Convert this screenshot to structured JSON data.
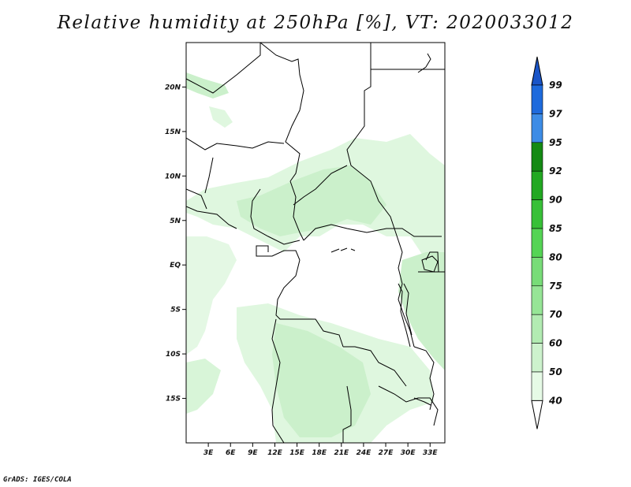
{
  "title": "Relative humidity at 250hPa [%], VT: 2020033012",
  "credit": "GrADS: IGES/COLA",
  "map": {
    "lat_labels": [
      {
        "label": "20N",
        "lat": 20
      },
      {
        "label": "15N",
        "lat": 15
      },
      {
        "label": "10N",
        "lat": 10
      },
      {
        "label": "5N",
        "lat": 5
      },
      {
        "label": "EQ",
        "lat": 0
      },
      {
        "label": "5S",
        "lat": -5
      },
      {
        "label": "10S",
        "lat": -10
      },
      {
        "label": "15S",
        "lat": -15
      }
    ],
    "lon_labels": [
      {
        "label": "3E",
        "lon": 3
      },
      {
        "label": "6E",
        "lon": 6
      },
      {
        "label": "9E",
        "lon": 9
      },
      {
        "label": "12E",
        "lon": 12
      },
      {
        "label": "15E",
        "lon": 15
      },
      {
        "label": "18E",
        "lon": 18
      },
      {
        "label": "21E",
        "lon": 21
      },
      {
        "label": "24E",
        "lon": 24
      },
      {
        "label": "27E",
        "lon": 27
      },
      {
        "label": "30E",
        "lon": 30
      },
      {
        "label": "33E",
        "lon": 33
      }
    ],
    "extent": {
      "lon_min": 0,
      "lon_max": 35,
      "lat_min": -20,
      "lat_max": 25
    }
  },
  "colorbar": {
    "levels": [
      "40",
      "50",
      "60",
      "70",
      "75",
      "80",
      "85",
      "90",
      "92",
      "95",
      "97",
      "99"
    ],
    "colors": [
      "#ffffff",
      "#e6fae6",
      "#cdf2cd",
      "#b2ebb2",
      "#96e596",
      "#78dc78",
      "#55d455",
      "#38c038",
      "#22a822",
      "#148a14",
      "#3d8ce6",
      "#1e6adc",
      "#1a55c8"
    ]
  }
}
